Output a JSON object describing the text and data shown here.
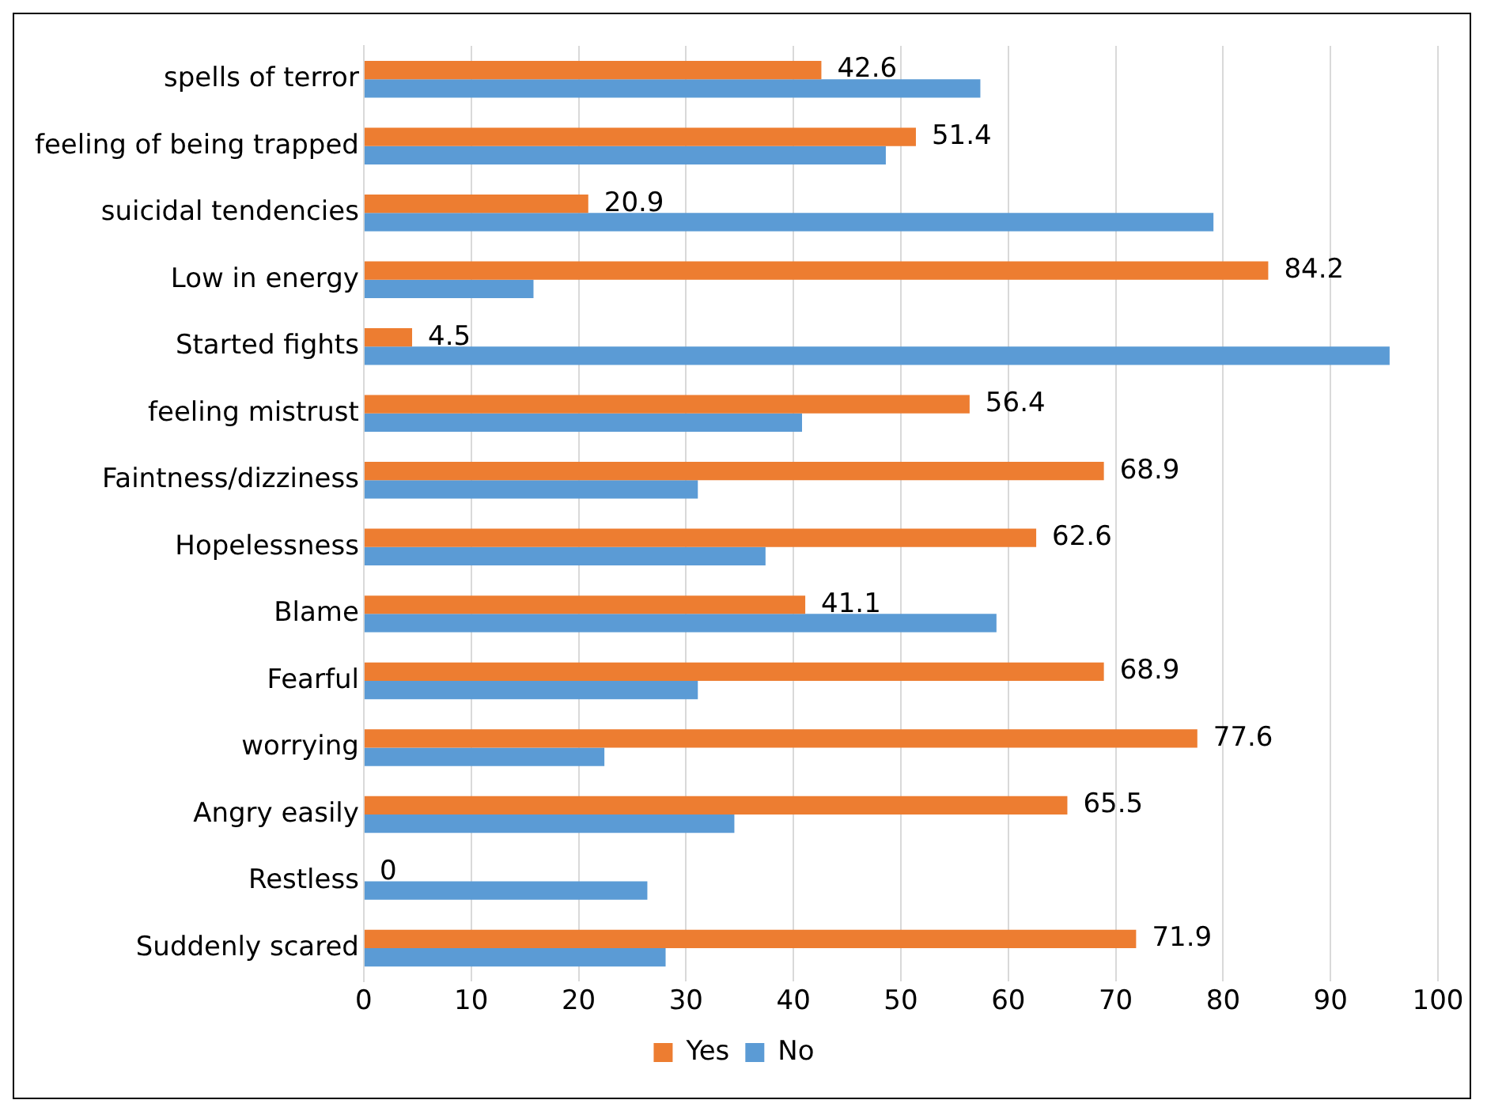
{
  "chart_data": {
    "type": "bar",
    "orientation": "horizontal",
    "categories": [
      "spells of terror",
      "feeling of being trapped",
      "suicidal tendencies",
      "Low in energy",
      "Started fights",
      "feeling mistrust",
      "Faintness/dizziness",
      "Hopelessness",
      "Blame",
      "Fearful",
      "worrying",
      "Angry easily",
      "Restless",
      "Suddenly scared"
    ],
    "series": [
      {
        "name": "Yes",
        "color": "#ed7d31",
        "values": [
          42.6,
          51.4,
          20.9,
          84.2,
          4.5,
          56.4,
          68.9,
          62.6,
          41.1,
          68.9,
          77.6,
          65.5,
          0,
          71.9
        ],
        "value_labels": [
          "42.6",
          "51.4",
          "20.9",
          "84.2",
          "4.5",
          "56.4",
          "68.9",
          "62.6",
          "41.1",
          "68.9",
          "77.6",
          "65.5",
          "0",
          "71.9"
        ]
      },
      {
        "name": "No",
        "color": "#5b9bd5",
        "values": [
          57.4,
          48.6,
          79.1,
          15.8,
          95.5,
          40.8,
          31.1,
          37.4,
          58.9,
          31.1,
          22.4,
          34.5,
          26.4,
          28.1
        ]
      }
    ],
    "xlim": [
      0,
      100
    ],
    "xticks": [
      0,
      10,
      20,
      30,
      40,
      50,
      60,
      70,
      80,
      90,
      100
    ],
    "grid": "x",
    "legend": "bottom"
  }
}
